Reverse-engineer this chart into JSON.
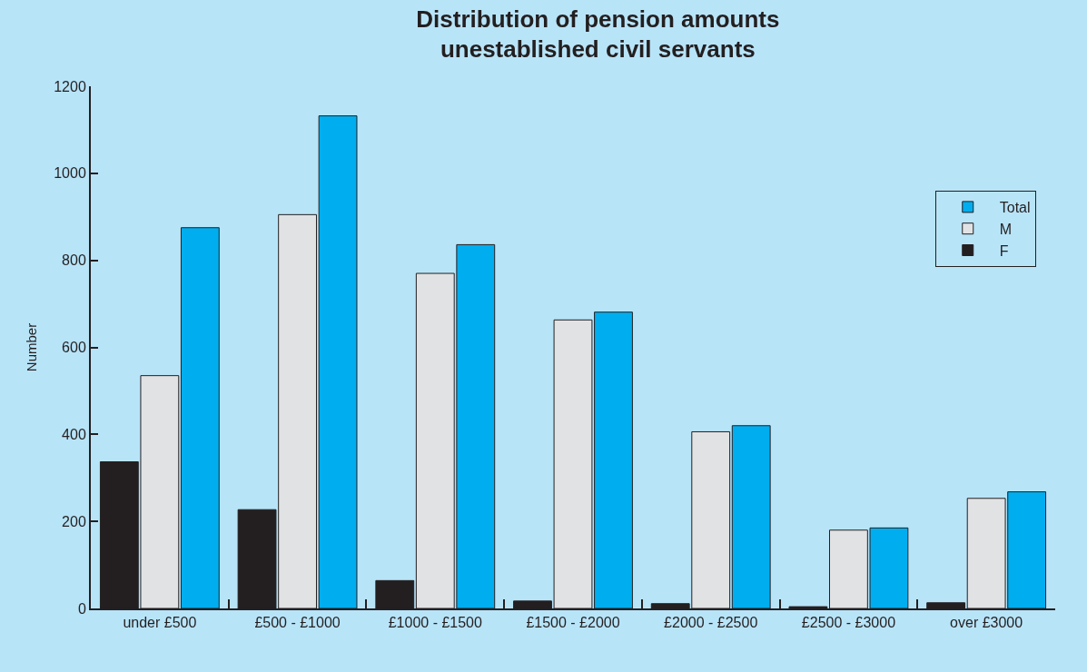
{
  "chart_data": {
    "type": "bar",
    "title": "Distribution of pension amounts\nunestablished civil servants",
    "ylabel": "Number",
    "categories": [
      "under £500",
      "£500 - £1000",
      "£1000 - £1500",
      "£1500 - £2000",
      "£2000 - £2500",
      "£2500 - £3000",
      "over £3000"
    ],
    "series": [
      {
        "name": "F",
        "color": "#231f20",
        "values": [
          337,
          227,
          64,
          17,
          11,
          4,
          13
        ]
      },
      {
        "name": "M",
        "color": "#e1e2e4",
        "values": [
          535,
          905,
          770,
          663,
          406,
          180,
          253
        ]
      },
      {
        "name": "Total",
        "color": "#00aeef",
        "values": [
          875,
          1132,
          836,
          681,
          420,
          185,
          268
        ]
      }
    ],
    "ylim": [
      0,
      1200
    ],
    "yticks": [
      0,
      200,
      400,
      600,
      800,
      1000,
      1200
    ],
    "grid": false,
    "legend": "top right"
  }
}
